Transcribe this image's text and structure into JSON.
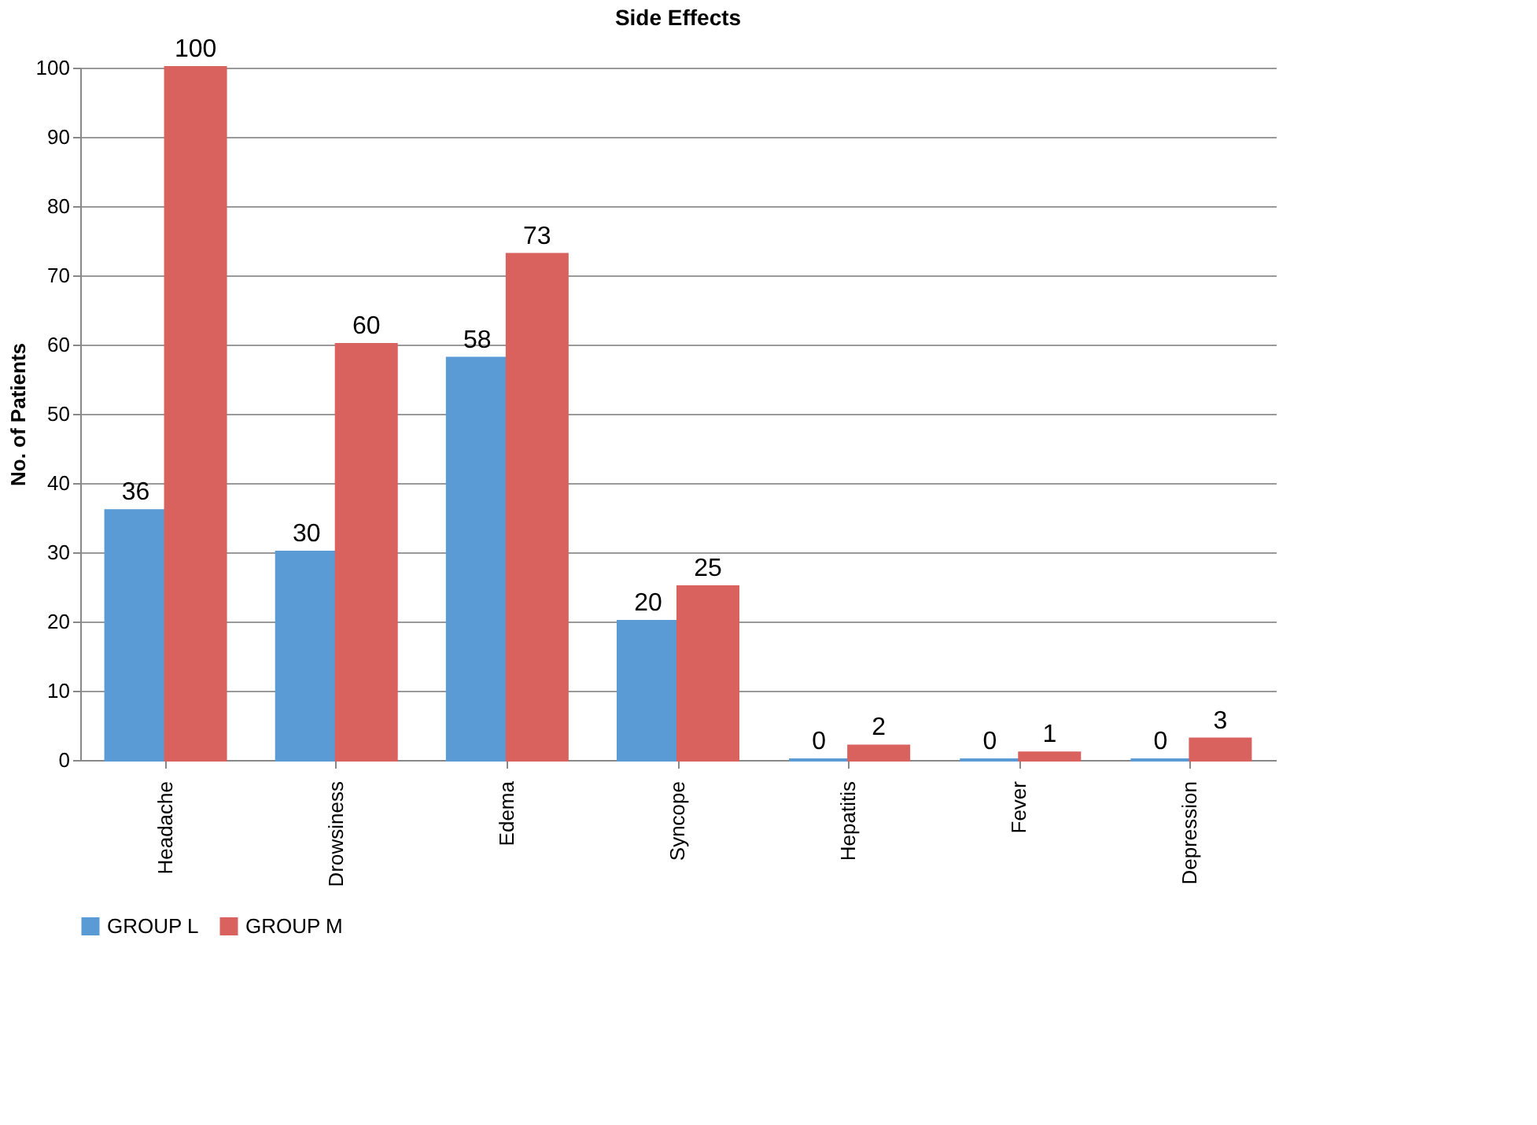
{
  "chart_data": {
    "type": "bar",
    "title": "Side Effects",
    "ylabel": "No.  of Patients",
    "categories": [
      "Headache",
      "Drowsiness",
      "Edema",
      "Syncope",
      "Hepatitis",
      "Fever",
      "Depression"
    ],
    "series": [
      {
        "name": "GROUP L",
        "color": "#5b9bd5",
        "values": [
          36,
          30,
          58,
          20,
          0,
          0,
          0
        ]
      },
      {
        "name": "GROUP M",
        "color": "#d9625e",
        "values": [
          100,
          60,
          73,
          25,
          2,
          1,
          3
        ]
      }
    ],
    "ylim": [
      0,
      100
    ],
    "yticks": [
      0,
      10,
      20,
      30,
      40,
      50,
      60,
      70,
      80,
      90,
      100
    ],
    "grid": "y",
    "legend": "bottom",
    "data_labels": true
  }
}
